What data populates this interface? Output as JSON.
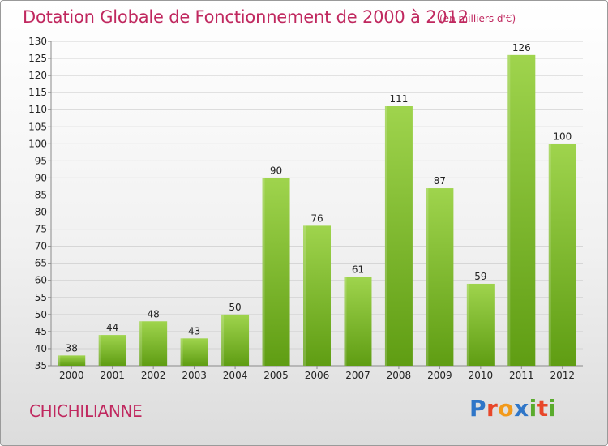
{
  "header": {
    "title": "Dotation Globale de Fonctionnement de 2000 à 2012",
    "subtitle": "(en milliers d'€)"
  },
  "footer": {
    "commune": "CHICHILIANNE",
    "logo_text": "Proxiti",
    "logo_letters": [
      {
        "ch": "P",
        "color": "#2f76c8"
      },
      {
        "ch": "r",
        "color": "#e8472a"
      },
      {
        "ch": "o",
        "color": "#f29a1b"
      },
      {
        "ch": "x",
        "color": "#2f76c8"
      },
      {
        "ch": "i",
        "color": "#5aab2d"
      },
      {
        "ch": "t",
        "color": "#e8472a"
      },
      {
        "ch": "i",
        "color": "#5aab2d"
      }
    ]
  },
  "colors": {
    "title": "#c0285f",
    "bar_top": "#9fd44d",
    "bar_bottom": "#5f9d13",
    "grid": "#d2d2d2",
    "axis": "#8a8a8a"
  },
  "chart_data": {
    "type": "bar",
    "title": "Dotation Globale de Fonctionnement de 2000 à 2012",
    "subtitle": "(en milliers d'€)",
    "xlabel": "",
    "ylabel": "",
    "categories": [
      "2000",
      "2001",
      "2002",
      "2003",
      "2004",
      "2005",
      "2006",
      "2007",
      "2008",
      "2009",
      "2010",
      "2011",
      "2012"
    ],
    "values": [
      38,
      44,
      48,
      43,
      50,
      90,
      76,
      61,
      111,
      87,
      59,
      126,
      100
    ],
    "ylim": [
      35,
      130
    ],
    "yticks": [
      35,
      40,
      45,
      50,
      55,
      60,
      65,
      70,
      75,
      80,
      85,
      90,
      95,
      100,
      105,
      110,
      115,
      120,
      125,
      130
    ],
    "grid": true,
    "legend": "none"
  }
}
